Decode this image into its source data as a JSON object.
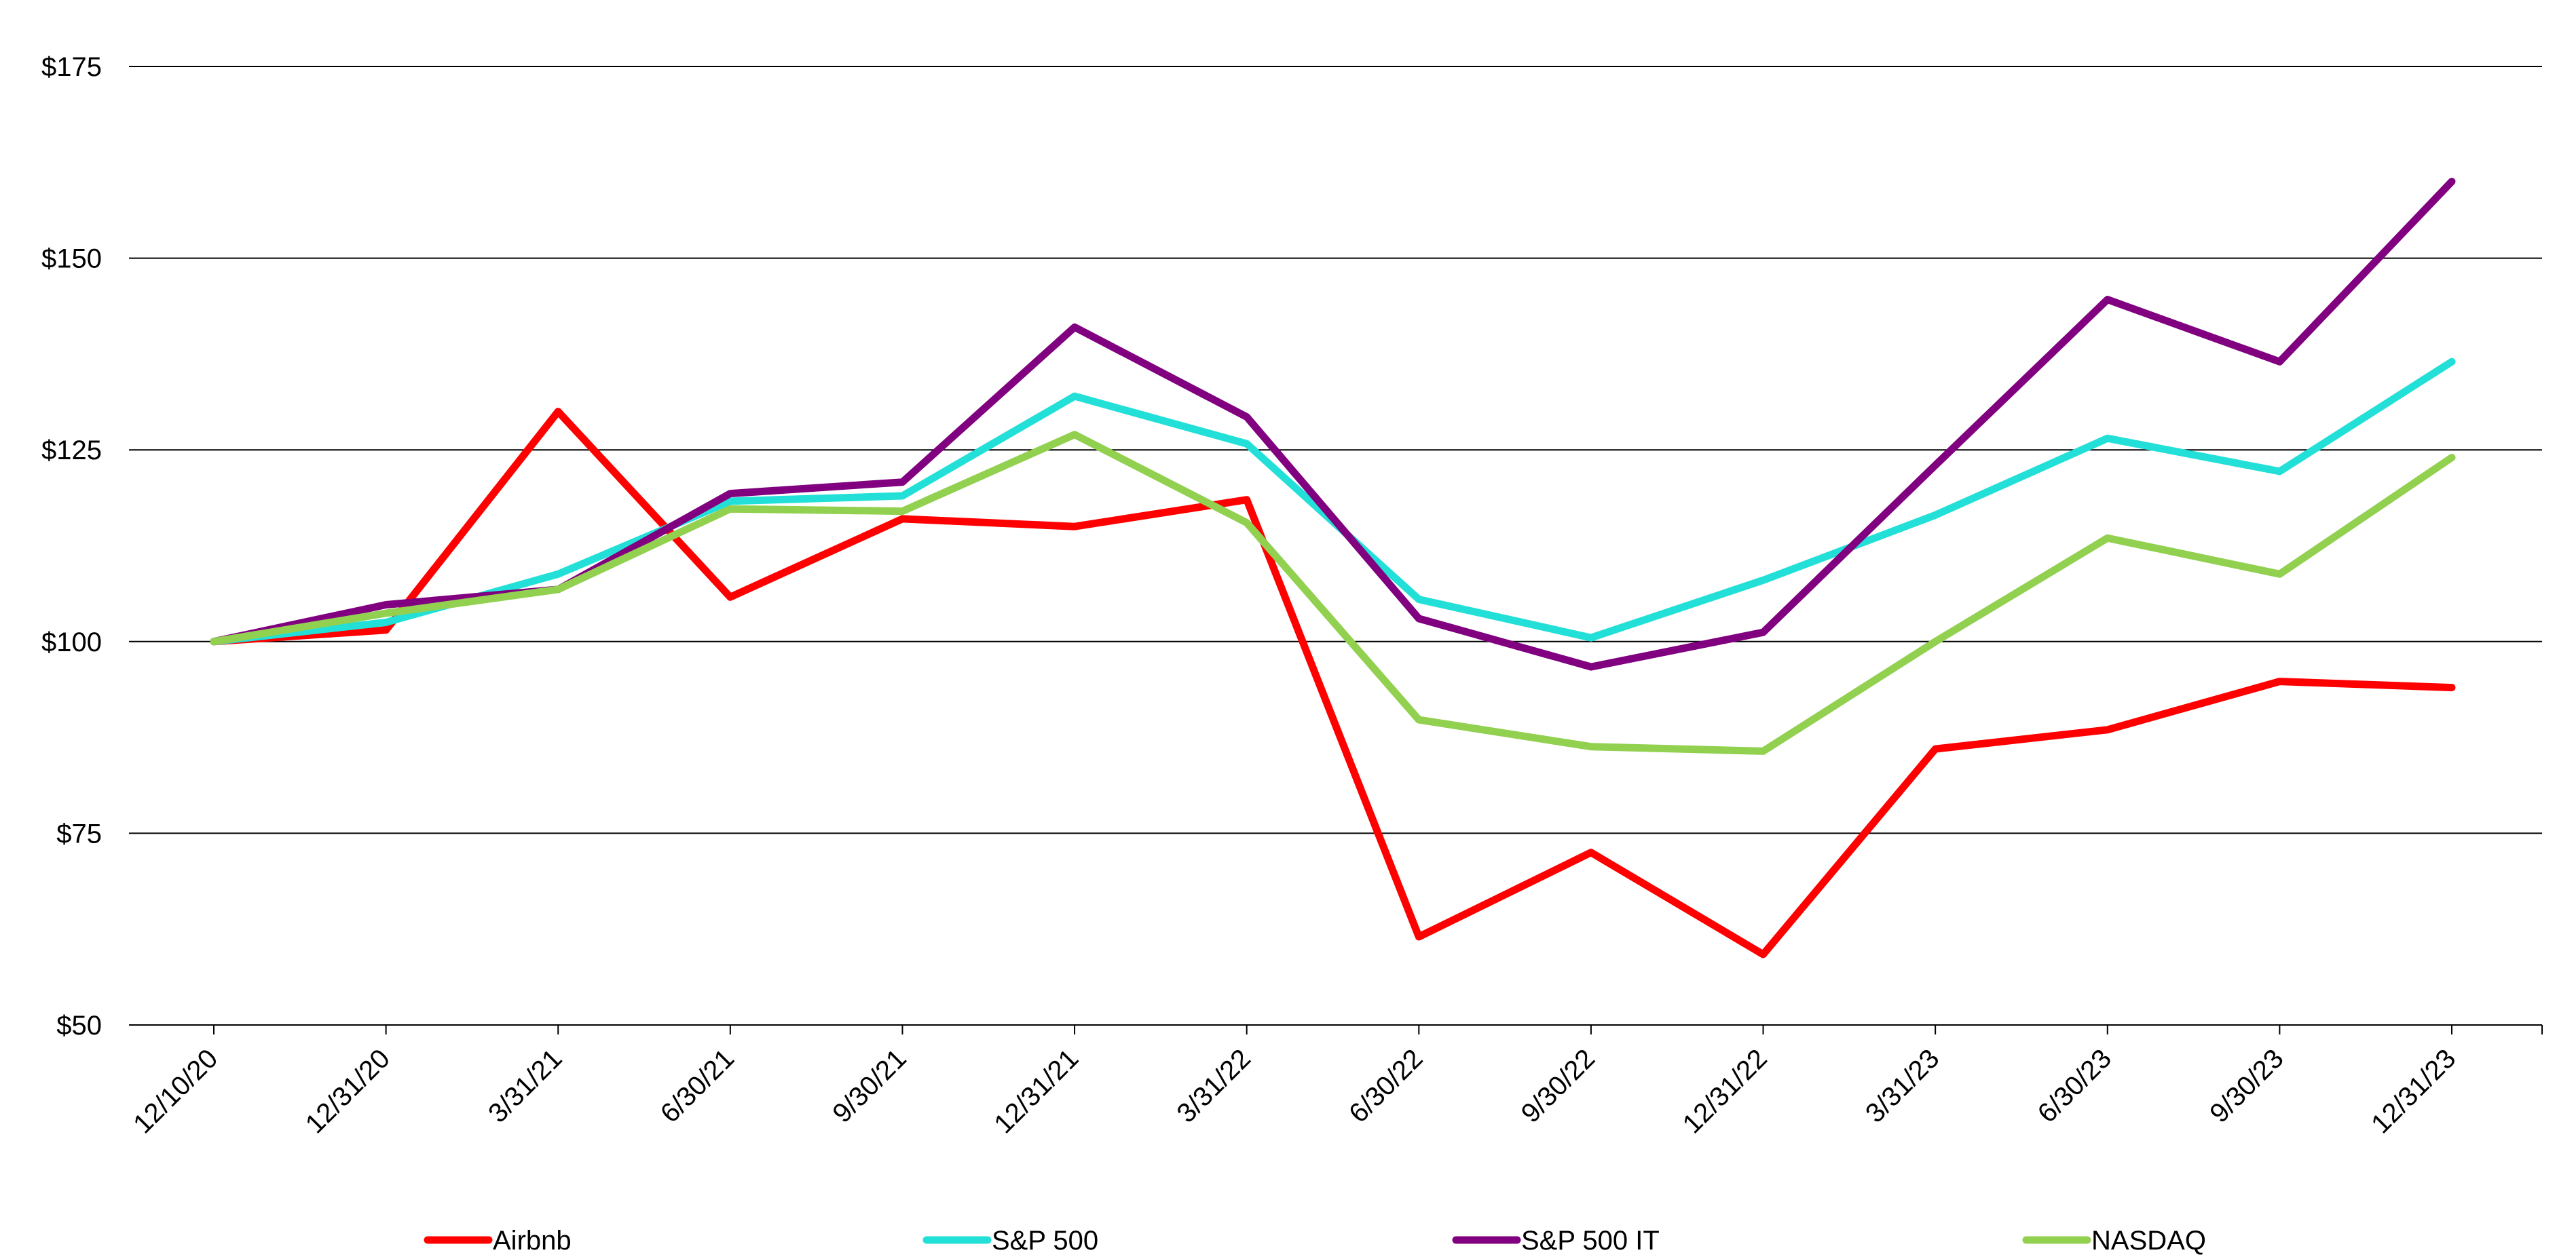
{
  "chart_data": {
    "type": "line",
    "title": "",
    "xlabel": "",
    "ylabel": "",
    "categories": [
      "12/10/20",
      "12/31/20",
      "3/31/21",
      "6/30/21",
      "9/30/21",
      "12/31/21",
      "3/31/22",
      "6/30/22",
      "9/30/22",
      "12/31/22",
      "3/31/23",
      "6/30/23",
      "9/30/23",
      "12/31/23"
    ],
    "yticks": [
      50,
      75,
      100,
      125,
      150,
      175
    ],
    "ytick_labels": [
      "$50",
      "$75",
      "$100",
      "$125",
      "$150",
      "$175"
    ],
    "ylim": [
      50,
      175
    ],
    "grid": true,
    "legend_position": "bottom",
    "series": [
      {
        "name": "Airbnb",
        "color": "#ff0000",
        "values": [
          100,
          101.5,
          130,
          105.8,
          116,
          115,
          118.5,
          61.5,
          72.5,
          59.2,
          86,
          88.5,
          94.8,
          94
        ]
      },
      {
        "name": "S&P 500",
        "color": "#22e0d8",
        "values": [
          100,
          102.5,
          108.8,
          118.3,
          119,
          132,
          125.8,
          105.5,
          100.5,
          108,
          116.5,
          126.5,
          122.2,
          136.5
        ]
      },
      {
        "name": "S&P 500 IT",
        "color": "#800080",
        "values": [
          100,
          104.8,
          106.8,
          119.3,
          120.8,
          141,
          129.3,
          103,
          96.7,
          101.2,
          123,
          144.6,
          136.5,
          160
        ]
      },
      {
        "name": "NASDAQ",
        "color": "#92d050",
        "values": [
          100,
          103.7,
          106.8,
          117.3,
          117,
          127,
          115.5,
          89.8,
          86.3,
          85.7,
          100,
          113.5,
          108.8,
          124
        ]
      }
    ]
  }
}
